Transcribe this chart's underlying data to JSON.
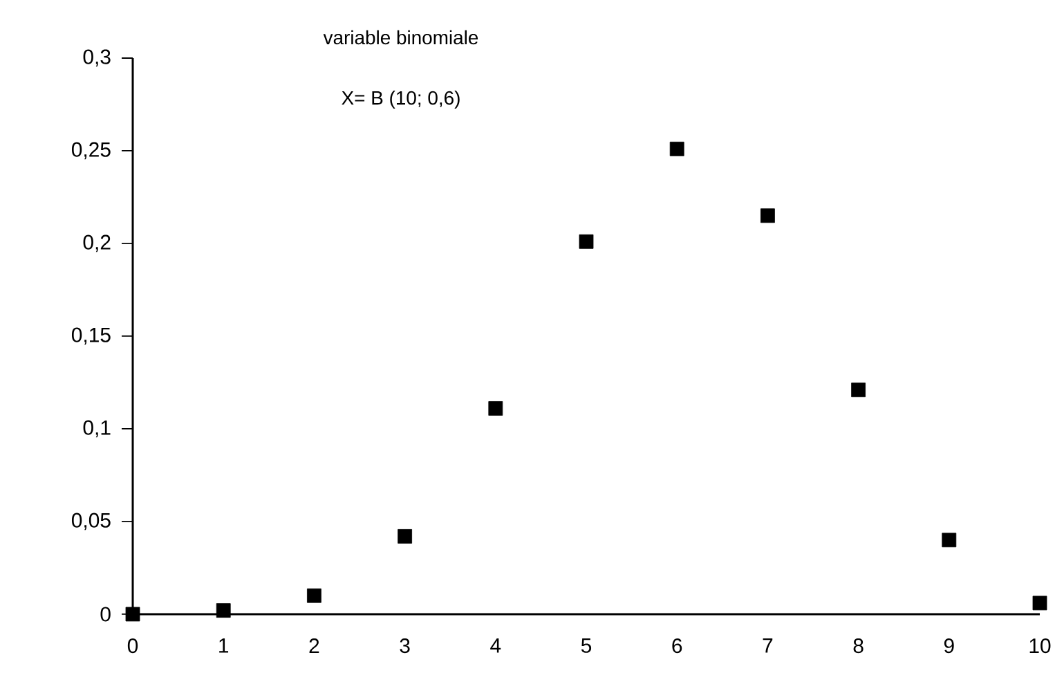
{
  "chart_data": {
    "type": "scatter",
    "title": "variable binomiale",
    "subtitle": "X= B (10; 0,6)",
    "x": [
      0,
      1,
      2,
      3,
      4,
      5,
      6,
      7,
      8,
      9,
      10
    ],
    "values": [
      0.0,
      0.002,
      0.01,
      0.042,
      0.111,
      0.201,
      0.251,
      0.215,
      0.121,
      0.04,
      0.006
    ],
    "color": "#000000",
    "marker": "square",
    "xlim": [
      0,
      10
    ],
    "ylim": [
      0,
      0.3
    ],
    "xticks": [
      0,
      1,
      2,
      3,
      4,
      5,
      6,
      7,
      8,
      9,
      10
    ],
    "yticks": [
      0,
      {
        "value": 0.05,
        "label": "0,05"
      },
      {
        "value": 0.1,
        "label": "0,1"
      },
      {
        "value": 0.15,
        "label": "0,15"
      },
      {
        "value": 0.2,
        "label": "0,2"
      },
      {
        "value": 0.25,
        "label": "0,25"
      },
      {
        "value": 0.3,
        "label": "0,3"
      }
    ]
  }
}
